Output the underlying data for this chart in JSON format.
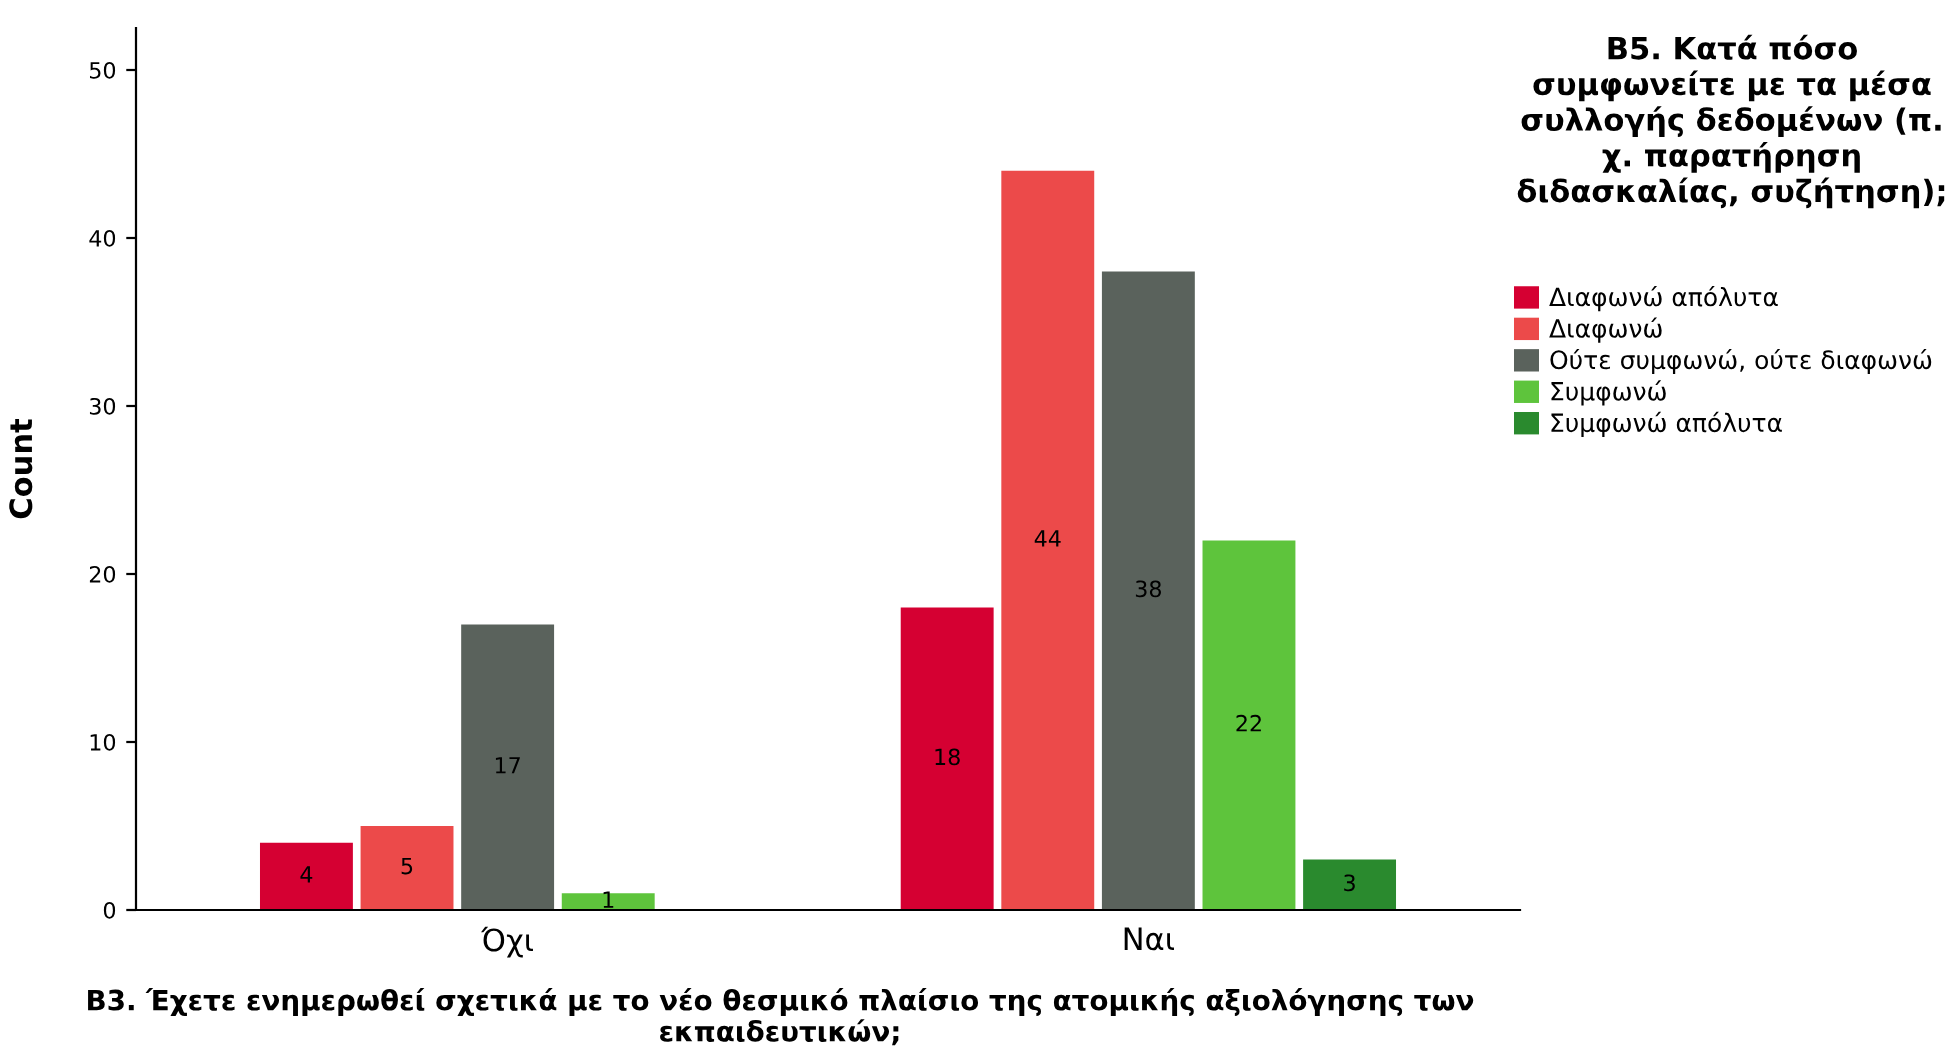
{
  "chart_data": {
    "type": "bar",
    "xlabel": "B3. Έχετε ενημερωθεί σχετικά με το νέο θεσμικό πλαίσιο της ατομικής αξιολόγησης των εκπαιδευτικών;",
    "ylabel": "Count",
    "legend_title": "B5. Κατά πόσο συμφωνείτε με τα μέσα συλλογής δεδομένων (π. χ. παρατήρηση διδασκαλίας, συζήτηση);",
    "categories": [
      "Όχι",
      "Ναι"
    ],
    "series": [
      {
        "name": "Διαφωνώ απόλυτα",
        "color": "#d50032",
        "values": [
          4,
          18
        ]
      },
      {
        "name": "Διαφωνώ",
        "color": "#ec4a4a",
        "values": [
          5,
          44
        ]
      },
      {
        "name": "Ούτε συμφωνώ, ούτε διαφωνώ",
        "color": "#5a625c",
        "values": [
          17,
          38
        ]
      },
      {
        "name": "Συμφωνώ",
        "color": "#5ec43c",
        "values": [
          1,
          22
        ]
      },
      {
        "name": "Συμφωνώ απόλυτα",
        "color": "#2a8a2e",
        "values": [
          null,
          3
        ]
      }
    ],
    "ylim": [
      0,
      52.5
    ],
    "yticks": [
      0,
      10,
      20,
      30,
      40,
      50
    ],
    "data_labels": true,
    "grid": false,
    "legend": "top right"
  }
}
